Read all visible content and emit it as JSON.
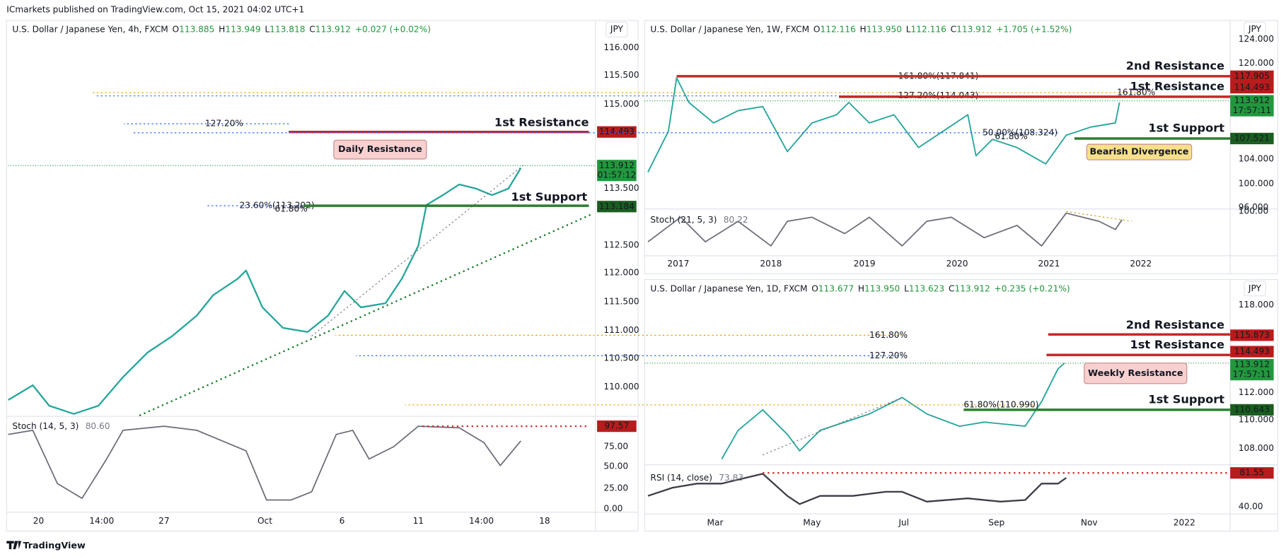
{
  "header": {
    "publisher": "ICmarkets published on TradingView.com, Oct 15, 2021 04:02 UTC+1"
  },
  "footer": {
    "brand": "TradingView"
  },
  "panels": [
    {
      "title": "U.S. Dollar / Japanese Yen, 4h, FXCM",
      "ohlc": [
        {
          "k": "O",
          "v": "113.885"
        },
        {
          "k": "H",
          "v": "113.949"
        },
        {
          "k": "L",
          "v": "113.818"
        },
        {
          "k": "C",
          "v": "113.912"
        }
      ],
      "change": "+0.027 (+0.02%)",
      "currency": "JPY",
      "price_axis": [
        "116.000",
        "115.500",
        "115.000",
        "113.500",
        "112.500",
        "112.000",
        "111.500",
        "111.000",
        "110.500",
        "110.000"
      ],
      "price_tags": [
        {
          "text": "114.493",
          "color": "#b71c1c"
        },
        {
          "text": "113.912",
          "sub": "01:57:12",
          "color": "#22973d"
        },
        {
          "text": "113.184",
          "color": "#1b5e20"
        }
      ],
      "time_axis": [
        "20",
        "14:00",
        "27",
        "Oct",
        "6",
        "11",
        "14:00",
        "18"
      ],
      "fib_labels": [
        {
          "text": "127.20%",
          "color": "#2962ff"
        },
        {
          "text": "23.60%(113.202)",
          "color": "#2962ff"
        },
        {
          "text": "61.80%",
          "color": "#e0a000"
        }
      ],
      "levels": [
        {
          "text": "1st Resistance",
          "color": "#c62828"
        },
        {
          "text": "1st Support",
          "color": "#2e7d32"
        }
      ],
      "callouts": [
        {
          "text": "Daily Resistance",
          "color": "#f8d0d0"
        }
      ],
      "indicator": {
        "name": "Stoch (14, 5, 3)",
        "value": "80.60",
        "axis": [
          "75.00",
          "50.00",
          "25.00",
          "0.00"
        ],
        "tag": "97.57"
      }
    },
    {
      "title": "U.S. Dollar / Japanese Yen, 1W, FXCM",
      "ohlc": [
        {
          "k": "O",
          "v": "112.116"
        },
        {
          "k": "H",
          "v": "113.950"
        },
        {
          "k": "L",
          "v": "112.116"
        },
        {
          "k": "C",
          "v": "113.912"
        }
      ],
      "change": "+1.705 (+1.52%)",
      "currency": "JPY",
      "price_axis": [
        "124.000",
        "120.000",
        "104.000",
        "100.000",
        "96.000"
      ],
      "price_tags": [
        {
          "text": "117.905",
          "color": "#b71c1c"
        },
        {
          "text": "114.493",
          "color": "#b71c1c"
        },
        {
          "text": "113.912",
          "sub": "17:57:11",
          "color": "#22973d"
        },
        {
          "text": "107.521",
          "color": "#1b5e20"
        }
      ],
      "time_axis": [
        "2017",
        "2018",
        "2019",
        "2020",
        "2021",
        "2022"
      ],
      "fib_labels": [
        {
          "text": "161.80%(117.841)",
          "color": "#e0a000"
        },
        {
          "text": "161.80%",
          "color": "#e0a000"
        },
        {
          "text": "127.20%(114.043)",
          "color": "#2962ff"
        },
        {
          "text": "50.00%(108.324)",
          "color": "#2962ff"
        },
        {
          "text": "61.80%",
          "color": "#e0a000"
        }
      ],
      "levels": [
        {
          "text": "2nd Resistance",
          "color": "#c62828"
        },
        {
          "text": "1st Resistance",
          "color": "#c62828"
        },
        {
          "text": "1st Support",
          "color": "#2e7d32"
        }
      ],
      "callouts": [
        {
          "text": "Bearish Divergence",
          "color": "#f7e08a"
        }
      ],
      "indicator": {
        "name": "Stoch (21, 5, 3)",
        "value": "80.22",
        "axis": [
          "100.00"
        ]
      }
    },
    {
      "title": "U.S. Dollar / Japanese Yen, 1D, FXCM",
      "ohlc": [
        {
          "k": "O",
          "v": "113.677"
        },
        {
          "k": "H",
          "v": "113.950"
        },
        {
          "k": "L",
          "v": "113.623"
        },
        {
          "k": "C",
          "v": "113.912"
        }
      ],
      "change": "+0.235 (+0.21%)",
      "currency": "JPY",
      "price_axis": [
        "118.000",
        "112.000",
        "110.000",
        "108.000"
      ],
      "price_tags": [
        {
          "text": "115.873",
          "color": "#b71c1c"
        },
        {
          "text": "114.493",
          "color": "#b71c1c"
        },
        {
          "text": "113.912",
          "sub": "17:57:11",
          "color": "#22973d"
        },
        {
          "text": "110.643",
          "color": "#1b5e20"
        }
      ],
      "time_axis": [
        "Mar",
        "May",
        "Jul",
        "Sep",
        "Nov",
        "2022"
      ],
      "fib_labels": [
        {
          "text": "161.80%",
          "color": "#e0a000"
        },
        {
          "text": "127.20%",
          "color": "#2962ff"
        },
        {
          "text": "61.80%(110.990)",
          "color": "#e0a000"
        }
      ],
      "levels": [
        {
          "text": "2nd Resistance",
          "color": "#c62828"
        },
        {
          "text": "1st Resistance",
          "color": "#c62828"
        },
        {
          "text": "1st Support",
          "color": "#2e7d32"
        }
      ],
      "callouts": [
        {
          "text": "Weekly Resistance",
          "color": "#f8d0d0"
        }
      ],
      "indicator": {
        "name": "RSI (14, close)",
        "value": "73.83",
        "axis": [
          "40.00"
        ],
        "tag": "81.55"
      }
    }
  ]
}
